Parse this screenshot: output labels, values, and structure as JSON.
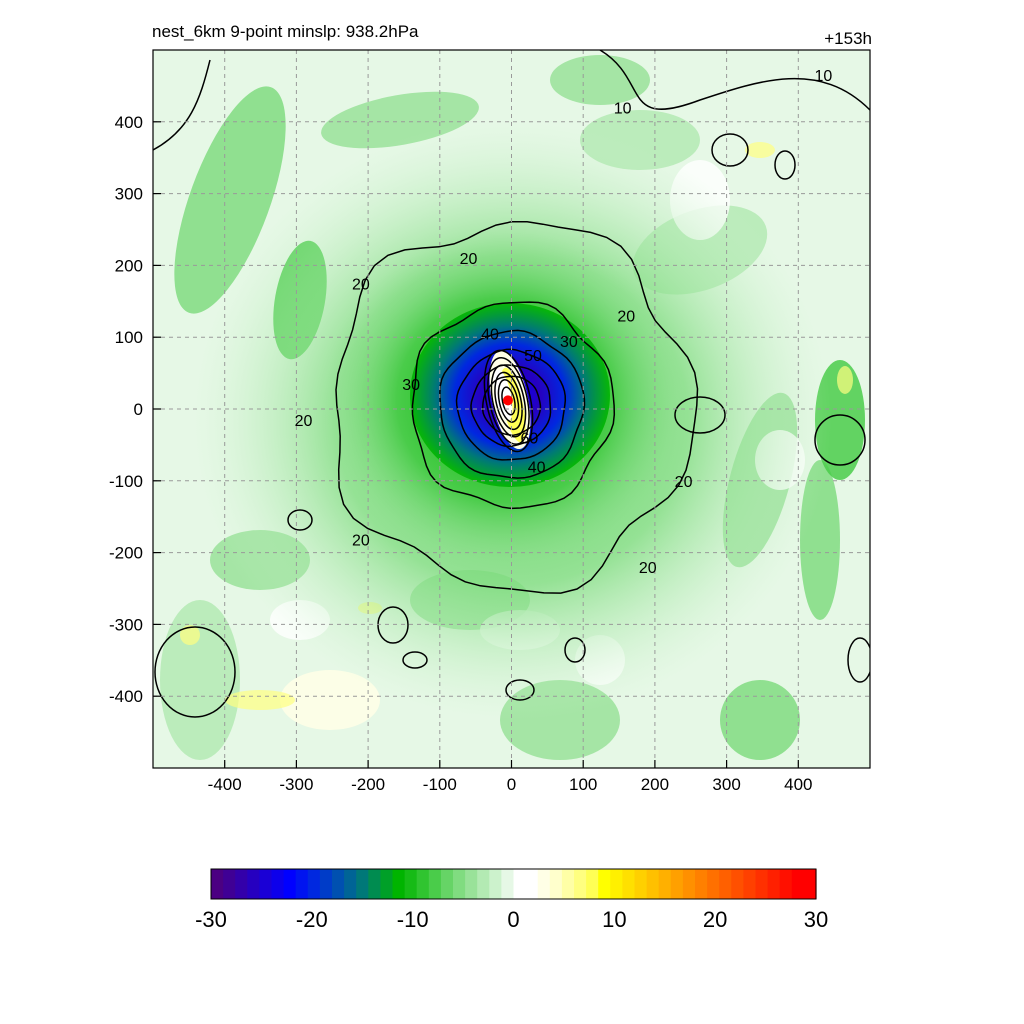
{
  "chart_data": {
    "type": "heatmap",
    "title": "nest_6km  9-point minslp: 938.2hPa",
    "valid_time": "+153h",
    "xlabel": "",
    "ylabel": "",
    "xlim": [
      -500,
      500
    ],
    "ylim": [
      -500,
      500
    ],
    "x_ticks": [
      -400,
      -300,
      -200,
      -100,
      0,
      100,
      200,
      300,
      400
    ],
    "y_ticks": [
      400,
      300,
      200,
      100,
      0,
      -100,
      -200,
      -300,
      -400
    ],
    "grid": true,
    "contour_levels": [
      10,
      20,
      30,
      40,
      50,
      60
    ],
    "contour_labels": [
      {
        "text": "10",
        "x": 155,
        "y": 420
      },
      {
        "text": "10",
        "x": 435,
        "y": 465
      },
      {
        "text": "20",
        "x": -210,
        "y": 175
      },
      {
        "text": "20",
        "x": -60,
        "y": 210
      },
      {
        "text": "20",
        "x": 160,
        "y": 130
      },
      {
        "text": "20",
        "x": -290,
        "y": -15
      },
      {
        "text": "20",
        "x": -210,
        "y": -182
      },
      {
        "text": "20",
        "x": 240,
        "y": -100
      },
      {
        "text": "20",
        "x": 190,
        "y": -220
      },
      {
        "text": "30",
        "x": -140,
        "y": 35
      },
      {
        "text": "30",
        "x": 80,
        "y": 95
      },
      {
        "text": "40",
        "x": -30,
        "y": 105
      },
      {
        "text": "40",
        "x": 35,
        "y": -80
      },
      {
        "text": "50",
        "x": 30,
        "y": 75
      },
      {
        "text": "60",
        "x": 25,
        "y": -40
      }
    ],
    "center_marker": {
      "x": -5,
      "y": 12
    },
    "colorbar": {
      "ticks": [
        -30,
        -20,
        -10,
        0,
        10,
        20,
        30
      ],
      "range": [
        -30,
        30
      ],
      "colors": [
        "#4B0082",
        "#3F0095",
        "#3300AA",
        "#2600C0",
        "#1A00D6",
        "#0D00EB",
        "#0000FF",
        "#0014F0",
        "#0028E0",
        "#003CC8",
        "#0050B0",
        "#006496",
        "#007878",
        "#008C50",
        "#00A028",
        "#00B400",
        "#16BB16",
        "#30C430",
        "#4ACC4A",
        "#66D466",
        "#80DC80",
        "#99E299",
        "#B3EAB3",
        "#CCF2CC",
        "#E6F8E6",
        "#FFFFFF",
        "#FFFFFF",
        "#FFFFE6",
        "#FFFFCC",
        "#FFFFA6",
        "#FFFF80",
        "#FFFF55",
        "#FFFF00",
        "#FFF000",
        "#FFE000",
        "#FFD000",
        "#FFC000",
        "#FFB000",
        "#FFA000",
        "#FF9000",
        "#FF8000",
        "#FF7000",
        "#FF6000",
        "#FF5000",
        "#FF4000",
        "#FF3000",
        "#FF2000",
        "#FF1000",
        "#FF0000",
        "#FF0000"
      ]
    }
  }
}
